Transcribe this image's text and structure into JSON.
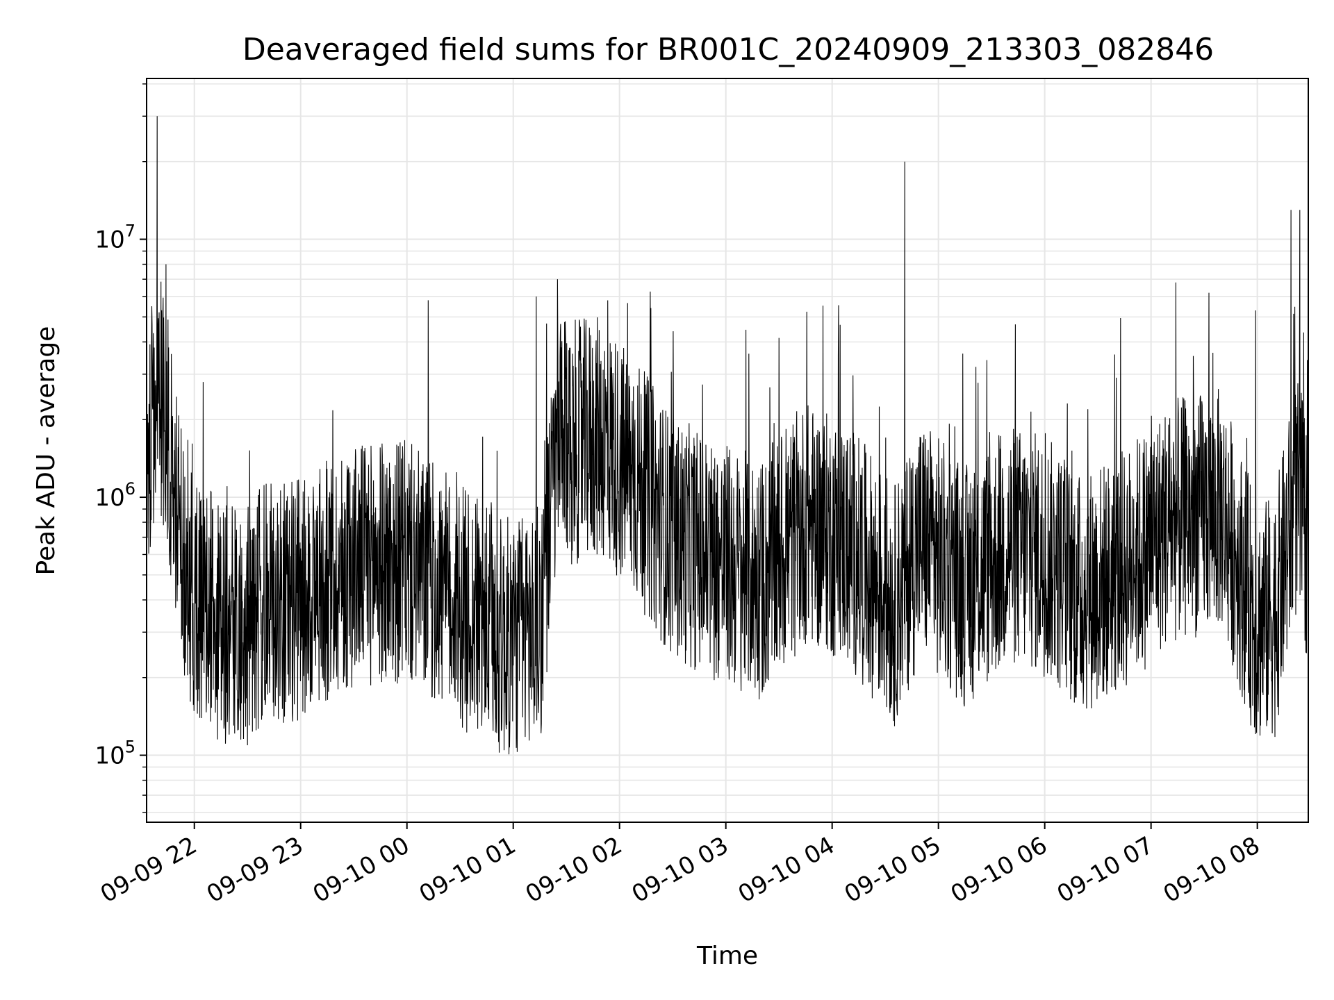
{
  "chart_data": {
    "type": "line",
    "title": "Deaveraged field sums for BR001C_20240909_213303_082846",
    "xlabel": "Time",
    "ylabel": "Peak ADU - average",
    "yscale": "log",
    "xlim": [
      "2024-09-09 21:33:03",
      "2024-09-10 08:28:46"
    ],
    "ylim": [
      55000,
      42000000
    ],
    "grid": true,
    "line_color": "#000000",
    "grid_color": "#e6e6e6",
    "x_ticks": [
      {
        "t": "2024-09-09 22:00",
        "label": "09-09 22"
      },
      {
        "t": "2024-09-09 23:00",
        "label": "09-09 23"
      },
      {
        "t": "2024-09-10 00:00",
        "label": "09-10 00"
      },
      {
        "t": "2024-09-10 01:00",
        "label": "09-10 01"
      },
      {
        "t": "2024-09-10 02:00",
        "label": "09-10 02"
      },
      {
        "t": "2024-09-10 03:00",
        "label": "09-10 03"
      },
      {
        "t": "2024-09-10 04:00",
        "label": "09-10 04"
      },
      {
        "t": "2024-09-10 05:00",
        "label": "09-10 05"
      },
      {
        "t": "2024-09-10 06:00",
        "label": "09-10 06"
      },
      {
        "t": "2024-09-10 07:00",
        "label": "09-10 07"
      },
      {
        "t": "2024-09-10 08:00",
        "label": "09-10 08"
      }
    ],
    "y_ticks": [
      {
        "value": 100000,
        "base": "10",
        "exp": "5"
      },
      {
        "value": 1000000,
        "base": "10",
        "exp": "6"
      },
      {
        "value": 10000000,
        "base": "10",
        "exp": "7"
      }
    ],
    "series": [
      {
        "trend": [
          [
            "2024-09-09 21:33",
            1000000
          ],
          [
            "2024-09-09 21:40",
            2800000
          ],
          [
            "2024-09-09 21:46",
            1500000
          ],
          [
            "2024-09-09 21:55",
            450000
          ],
          [
            "2024-09-09 22:10",
            350000
          ],
          [
            "2024-09-09 22:25",
            300000
          ],
          [
            "2024-09-09 22:40",
            380000
          ],
          [
            "2024-09-09 23:00",
            400000
          ],
          [
            "2024-09-09 23:30",
            550000
          ],
          [
            "2024-09-10 00:00",
            560000
          ],
          [
            "2024-09-10 00:30",
            380000
          ],
          [
            "2024-09-10 00:55",
            280000
          ],
          [
            "2024-09-10 01:15",
            320000
          ],
          [
            "2024-09-10 01:25",
            1600000
          ],
          [
            "2024-09-10 01:50",
            1700000
          ],
          [
            "2024-09-10 02:10",
            1150000
          ],
          [
            "2024-09-10 02:30",
            700000
          ],
          [
            "2024-09-10 03:00",
            550000
          ],
          [
            "2024-09-10 03:20",
            480000
          ],
          [
            "2024-09-10 03:45",
            800000
          ],
          [
            "2024-09-10 04:10",
            650000
          ],
          [
            "2024-09-10 04:35",
            380000
          ],
          [
            "2024-09-10 04:50",
            700000
          ],
          [
            "2024-09-10 05:15",
            450000
          ],
          [
            "2024-09-10 05:40",
            650000
          ],
          [
            "2024-09-10 06:00",
            600000
          ],
          [
            "2024-09-10 06:20",
            420000
          ],
          [
            "2024-09-10 06:45",
            520000
          ],
          [
            "2024-09-10 07:10",
            800000
          ],
          [
            "2024-09-10 07:40",
            900000
          ],
          [
            "2024-09-10 08:00",
            320000
          ],
          [
            "2024-09-10 08:10",
            350000
          ],
          [
            "2024-09-10 08:22",
            1000000
          ],
          [
            "2024-09-10 08:28",
            700000
          ]
        ],
        "spikes": [
          [
            "2024-09-09 21:39",
            30000000
          ],
          [
            "2024-09-09 21:44",
            8000000
          ],
          [
            "2024-09-09 21:36",
            5500000
          ],
          [
            "2024-09-10 00:12",
            5800000
          ],
          [
            "2024-09-10 01:13",
            6000000
          ],
          [
            "2024-09-10 01:25",
            7000000
          ],
          [
            "2024-09-10 03:13",
            3600000
          ],
          [
            "2024-09-10 04:41",
            20000000
          ],
          [
            "2024-09-10 07:14",
            6800000
          ],
          [
            "2024-09-10 07:59",
            5300000
          ],
          [
            "2024-09-10 08:19",
            13000000
          ],
          [
            "2024-09-10 08:24",
            13000000
          ]
        ]
      }
    ]
  }
}
